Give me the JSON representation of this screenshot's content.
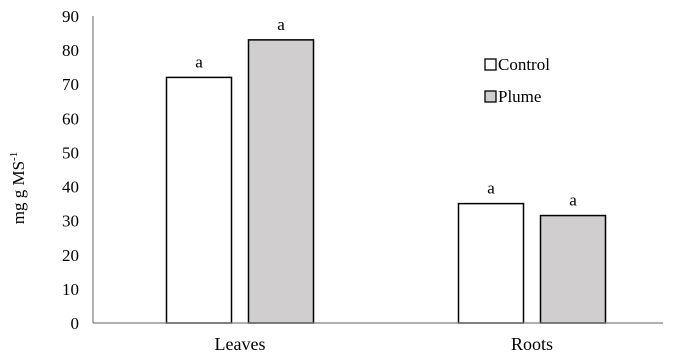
{
  "chart_data": {
    "type": "bar",
    "categories": [
      "Leaves",
      "Roots"
    ],
    "series": [
      {
        "name": "Control",
        "values": [
          72,
          35
        ],
        "color": "#ffffff",
        "significance": [
          "a",
          "a"
        ]
      },
      {
        "name": "Plume",
        "values": [
          83,
          31.5
        ],
        "color": "#d0cece",
        "significance": [
          "a",
          "a"
        ]
      }
    ],
    "ylabel": {
      "main": "mg g MS",
      "superscript": "-1"
    },
    "ylim": [
      0,
      90
    ],
    "yticks": [
      0,
      10,
      20,
      30,
      40,
      50,
      60,
      70,
      80,
      90
    ],
    "grid": false,
    "legend_position": "right",
    "bar_stroke_color": "#000000",
    "axis_color": "#808080"
  }
}
